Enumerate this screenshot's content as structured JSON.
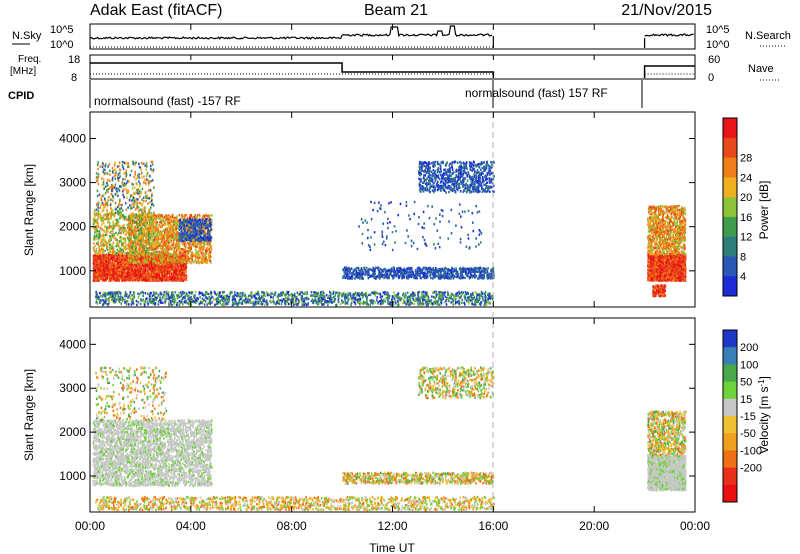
{
  "header": {
    "title": "Adak East (fitACF)",
    "beam": "Beam 21",
    "date": "21/Nov/2015"
  },
  "panels": {
    "nsky": {
      "label": "N.Sky",
      "right_label": "N.Search",
      "tick_top": "10^5",
      "tick_bottom": "10^0"
    },
    "freq": {
      "label_line1": "Freq.",
      "label_line2": "[MHz]",
      "right_label": "Nave",
      "left_ticks": [
        "18",
        "8"
      ],
      "right_ticks": [
        "60",
        "0"
      ]
    },
    "cpid": {
      "label": "CPID",
      "modes": [
        {
          "text": "normalsound (fast) -157 RF",
          "start_h": 0.0
        },
        {
          "text": "normalsound (fast) 157 RF",
          "start_h": 16.0
        }
      ]
    }
  },
  "chart_data": [
    {
      "type": "heatmap",
      "name": "power",
      "ylabel": "Slant Range [km]",
      "xlabel": "",
      "xlim": [
        0,
        24
      ],
      "ylim": [
        180,
        4600
      ],
      "yticks": [
        "1000",
        "2000",
        "3000",
        "4000"
      ],
      "colorbar": {
        "label": "Power [dB]",
        "ticks": [
          "4",
          "8",
          "12",
          "16",
          "20",
          "24",
          "28"
        ],
        "colors": [
          "#1d2bd6",
          "#2a58b4",
          "#2f7d7b",
          "#3f9b4d",
          "#8fc43a",
          "#f0b020",
          "#f07e18",
          "#e8491a",
          "#e8141a"
        ]
      }
    },
    {
      "type": "heatmap",
      "name": "velocity",
      "ylabel": "Slant Range [km]",
      "xlabel": "Time UT",
      "xlim": [
        0,
        24
      ],
      "ylim": [
        180,
        4600
      ],
      "yticks": [
        "1000",
        "2000",
        "3000",
        "4000"
      ],
      "xticks": [
        "00:00",
        "04:00",
        "08:00",
        "12:00",
        "16:00",
        "20:00",
        "00:00"
      ],
      "colorbar": {
        "label": "Velocity [m s^-1]",
        "ticks": [
          "200",
          "100",
          "50",
          "15",
          "-15",
          "-50",
          "-100",
          "-200"
        ],
        "colors": [
          "#2038c8",
          "#3b7fb8",
          "#4aa84a",
          "#6ed23a",
          "#c8c8c8",
          "#f0c030",
          "#f0a020",
          "#f07018",
          "#e83018",
          "#e81010"
        ]
      }
    }
  ],
  "colors": {
    "gap_line": "#b0b0b0",
    "ground_scatter": "#c0c0c0"
  }
}
